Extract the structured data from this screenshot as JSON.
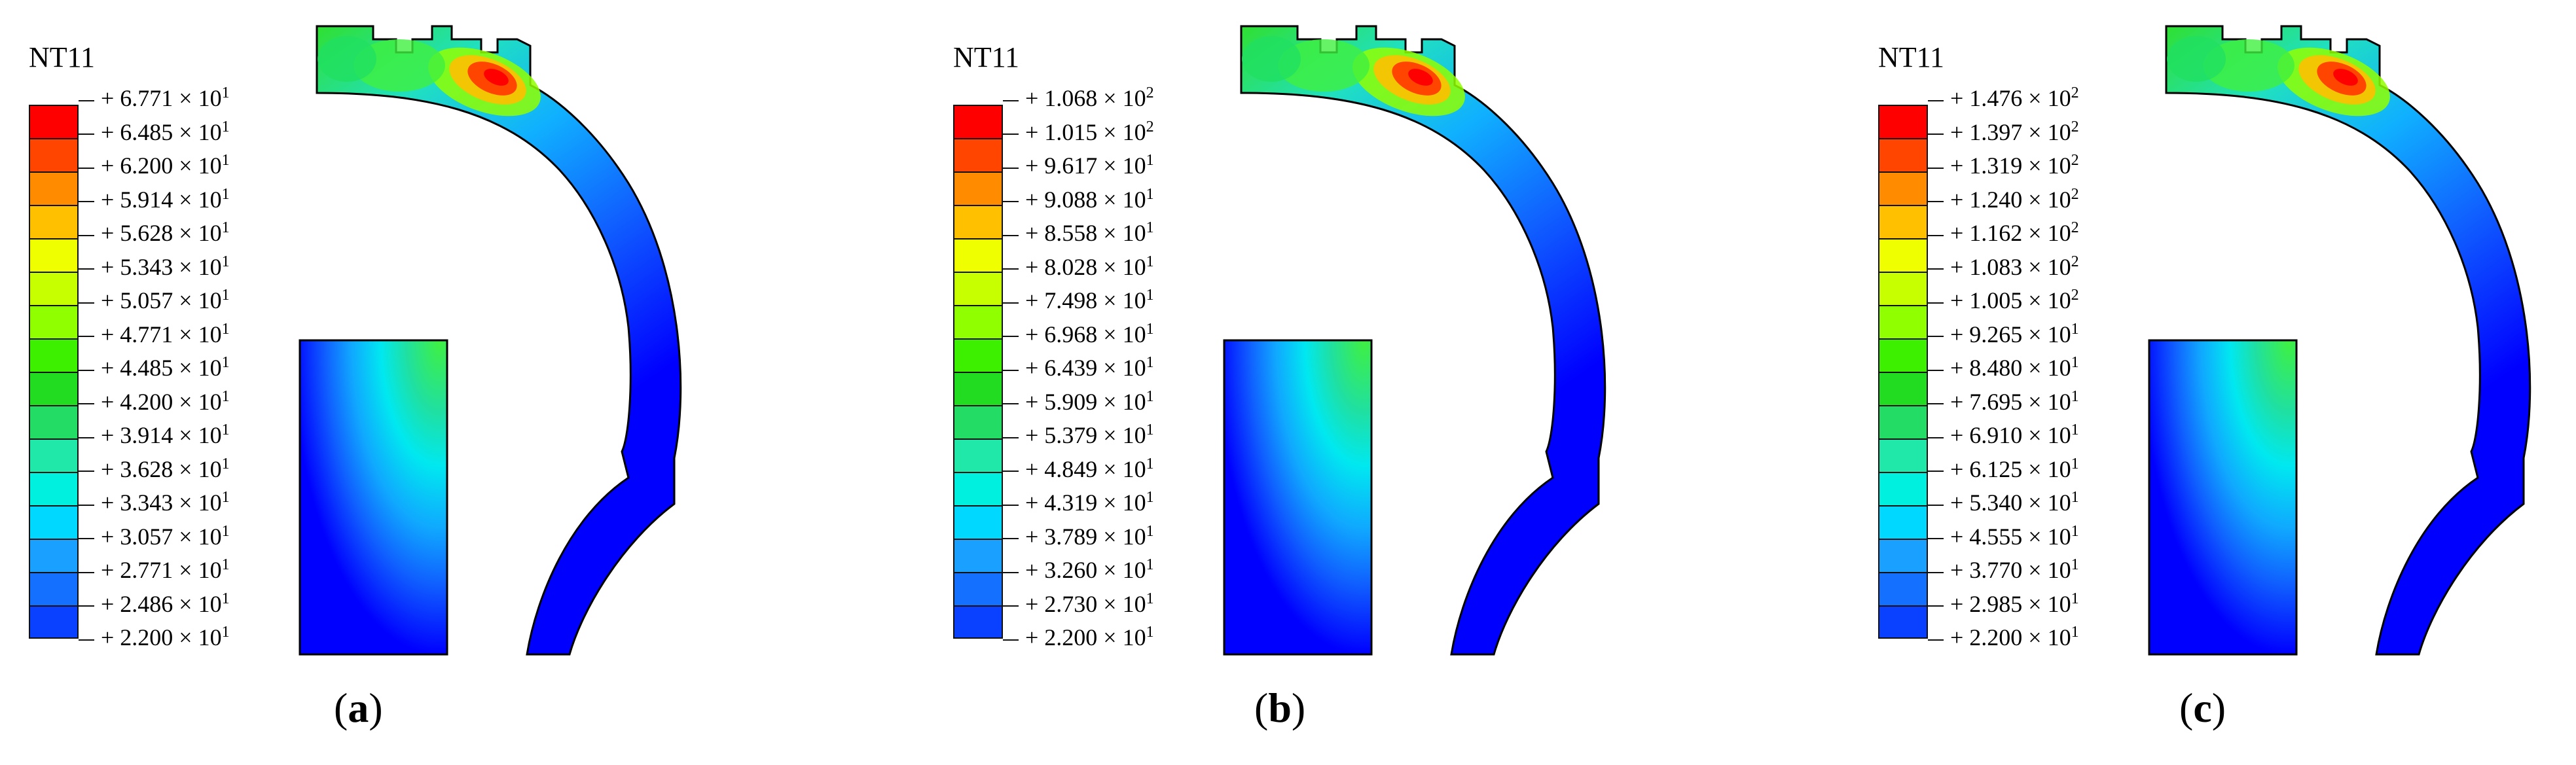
{
  "panels": [
    {
      "variable": "NT11",
      "label_letter": "a",
      "legend": [
        {
          "mant": "+ 6.771",
          "exp": "1"
        },
        {
          "mant": "+ 6.485",
          "exp": "1"
        },
        {
          "mant": "+ 6.200",
          "exp": "1"
        },
        {
          "mant": "+ 5.914",
          "exp": "1"
        },
        {
          "mant": "+ 5.628",
          "exp": "1"
        },
        {
          "mant": "+ 5.343",
          "exp": "1"
        },
        {
          "mant": "+ 5.057",
          "exp": "1"
        },
        {
          "mant": "+ 4.771",
          "exp": "1"
        },
        {
          "mant": "+ 4.485",
          "exp": "1"
        },
        {
          "mant": "+ 4.200",
          "exp": "1"
        },
        {
          "mant": "+ 3.914",
          "exp": "1"
        },
        {
          "mant": "+ 3.628",
          "exp": "1"
        },
        {
          "mant": "+ 3.343",
          "exp": "1"
        },
        {
          "mant": "+ 3.057",
          "exp": "1"
        },
        {
          "mant": "+ 2.771",
          "exp": "1"
        },
        {
          "mant": "+ 2.486",
          "exp": "1"
        },
        {
          "mant": "+ 2.200",
          "exp": "1"
        }
      ]
    },
    {
      "variable": "NT11",
      "label_letter": "b",
      "legend": [
        {
          "mant": "+ 1.068",
          "exp": "2"
        },
        {
          "mant": "+ 1.015",
          "exp": "2"
        },
        {
          "mant": "+ 9.617",
          "exp": "1"
        },
        {
          "mant": "+ 9.088",
          "exp": "1"
        },
        {
          "mant": "+ 8.558",
          "exp": "1"
        },
        {
          "mant": "+ 8.028",
          "exp": "1"
        },
        {
          "mant": "+ 7.498",
          "exp": "1"
        },
        {
          "mant": "+ 6.968",
          "exp": "1"
        },
        {
          "mant": "+ 6.439",
          "exp": "1"
        },
        {
          "mant": "+ 5.909",
          "exp": "1"
        },
        {
          "mant": "+ 5.379",
          "exp": "1"
        },
        {
          "mant": "+ 4.849",
          "exp": "1"
        },
        {
          "mant": "+ 4.319",
          "exp": "1"
        },
        {
          "mant": "+ 3.789",
          "exp": "1"
        },
        {
          "mant": "+ 3.260",
          "exp": "1"
        },
        {
          "mant": "+ 2.730",
          "exp": "1"
        },
        {
          "mant": "+ 2.200",
          "exp": "1"
        }
      ]
    },
    {
      "variable": "NT11",
      "label_letter": "c",
      "legend": [
        {
          "mant": "+ 1.476",
          "exp": "2"
        },
        {
          "mant": "+ 1.397",
          "exp": "2"
        },
        {
          "mant": "+ 1.319",
          "exp": "2"
        },
        {
          "mant": "+ 1.240",
          "exp": "2"
        },
        {
          "mant": "+ 1.162",
          "exp": "2"
        },
        {
          "mant": "+ 1.083",
          "exp": "2"
        },
        {
          "mant": "+ 1.005",
          "exp": "2"
        },
        {
          "mant": "+ 9.265",
          "exp": "1"
        },
        {
          "mant": "+ 8.480",
          "exp": "1"
        },
        {
          "mant": "+ 7.695",
          "exp": "1"
        },
        {
          "mant": "+ 6.910",
          "exp": "1"
        },
        {
          "mant": "+ 6.125",
          "exp": "1"
        },
        {
          "mant": "+ 5.340",
          "exp": "1"
        },
        {
          "mant": "+ 4.555",
          "exp": "1"
        },
        {
          "mant": "+ 3.770",
          "exp": "1"
        },
        {
          "mant": "+ 2.985",
          "exp": "1"
        },
        {
          "mant": "+ 2.200",
          "exp": "1"
        }
      ]
    }
  ],
  "times_symbol": "× 10",
  "paren_open": "(",
  "paren_close": ")",
  "colors": {
    "contour_bands": [
      "#ff0000",
      "#ff4500",
      "#ff8c00",
      "#ffc000",
      "#f0ff00",
      "#c8ff00",
      "#90ff00",
      "#3cf000",
      "#22dc22",
      "#22dc66",
      "#20e8a8",
      "#00f0e0",
      "#00d8ff",
      "#1aa0ff",
      "#1470ff",
      "#0a40ff",
      "#0000ff"
    ]
  }
}
